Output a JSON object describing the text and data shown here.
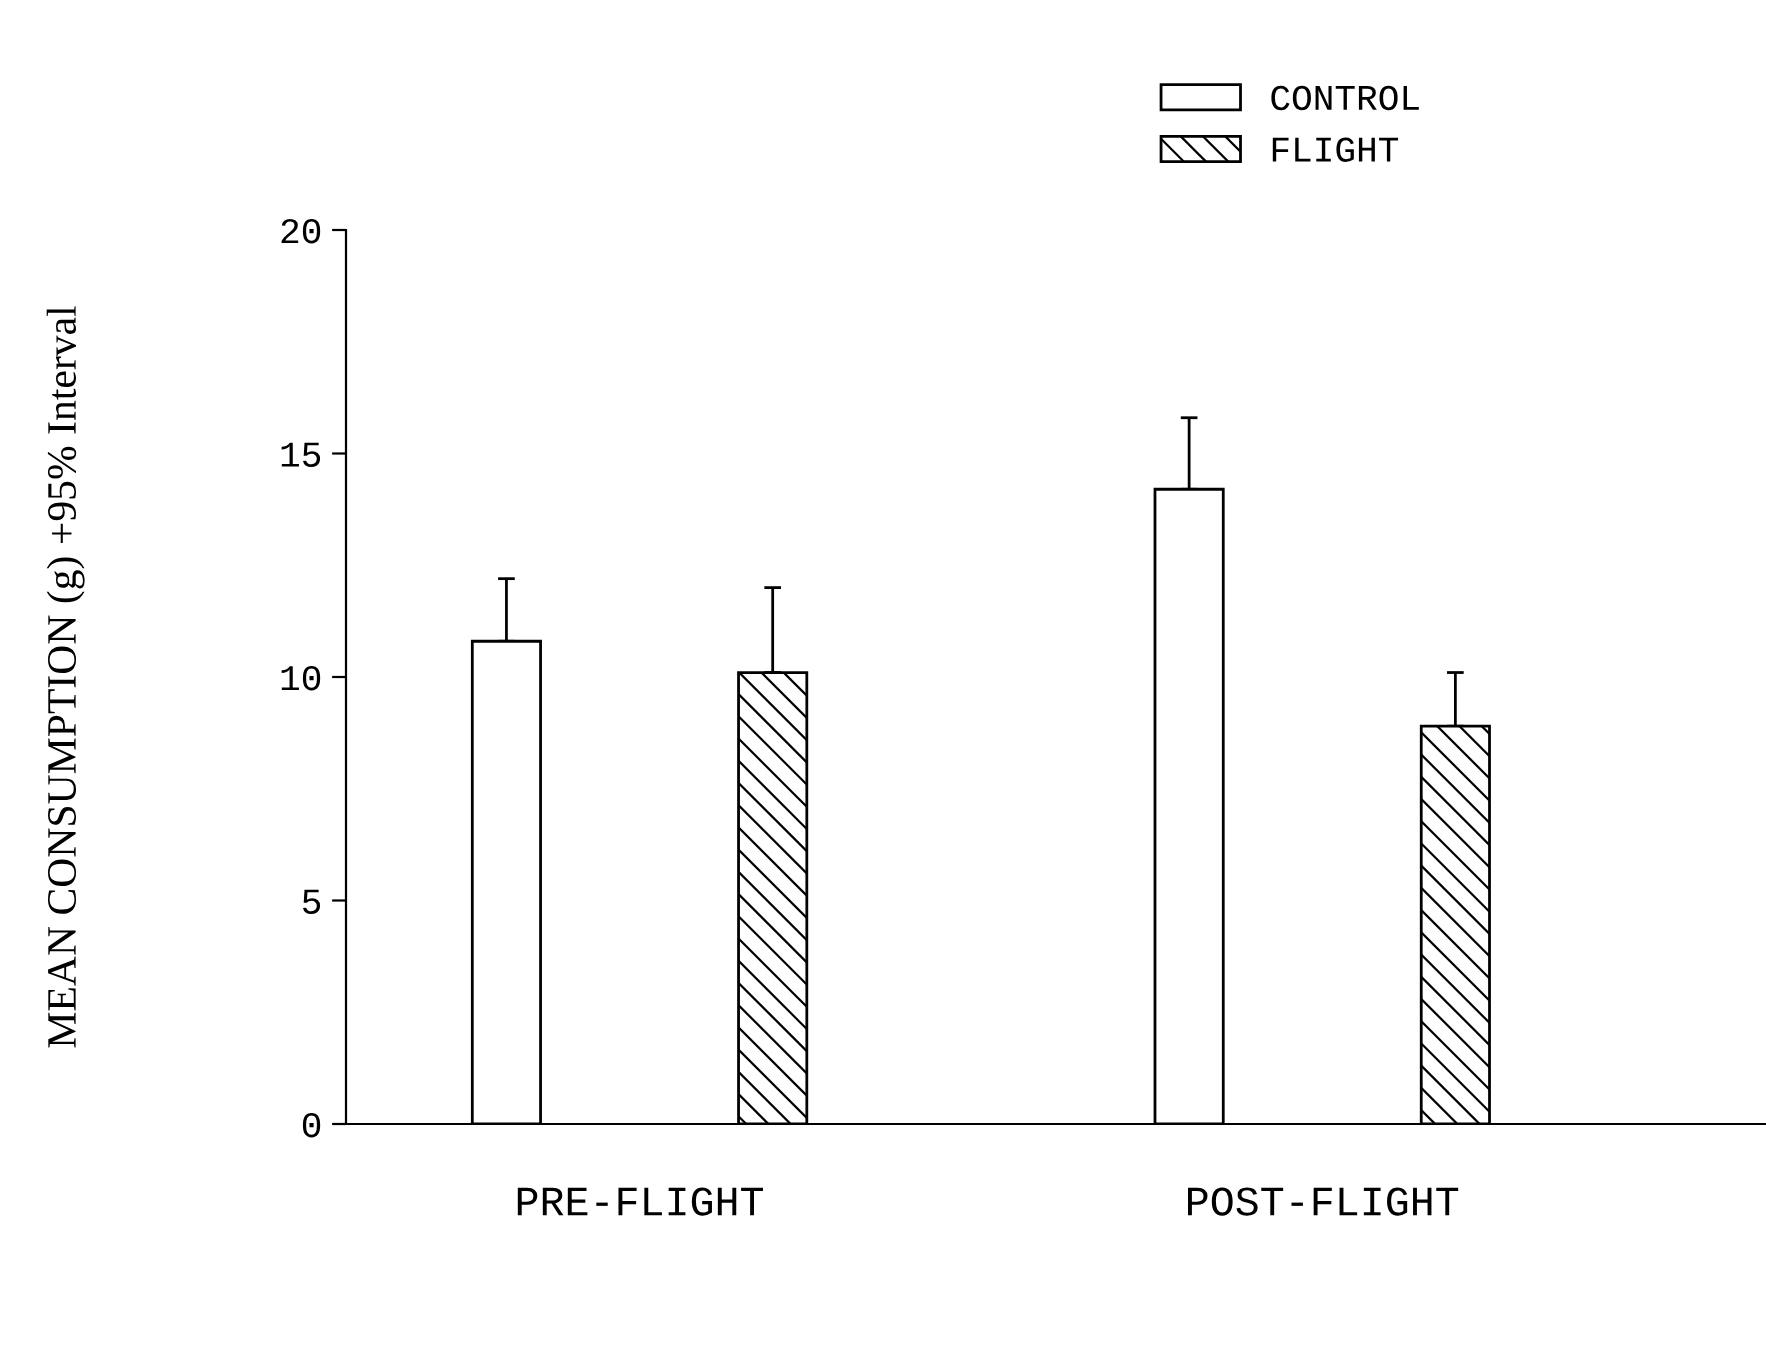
{
  "chart_data": {
    "type": "bar",
    "ylabel": "MEAN CONSUMPTION (g) +95% Interval",
    "categories": [
      "PRE-FLIGHT",
      "POST-FLIGHT"
    ],
    "series": [
      {
        "name": "CONTROL",
        "color": "#ffffff",
        "values": [
          10.8,
          14.2
        ],
        "errors": [
          [
            10.8,
            12.2
          ],
          [
            14.2,
            15.8
          ]
        ]
      },
      {
        "name": "FLIGHT",
        "color": "#000000",
        "values": [
          10.1,
          8.9
        ],
        "errors": [
          [
            10.1,
            12.0
          ],
          [
            8.9,
            10.1
          ]
        ]
      }
    ],
    "ylim": [
      0,
      20
    ],
    "yticks": [
      0,
      5,
      10,
      15,
      20
    ],
    "grid": false,
    "legend": "top right"
  }
}
